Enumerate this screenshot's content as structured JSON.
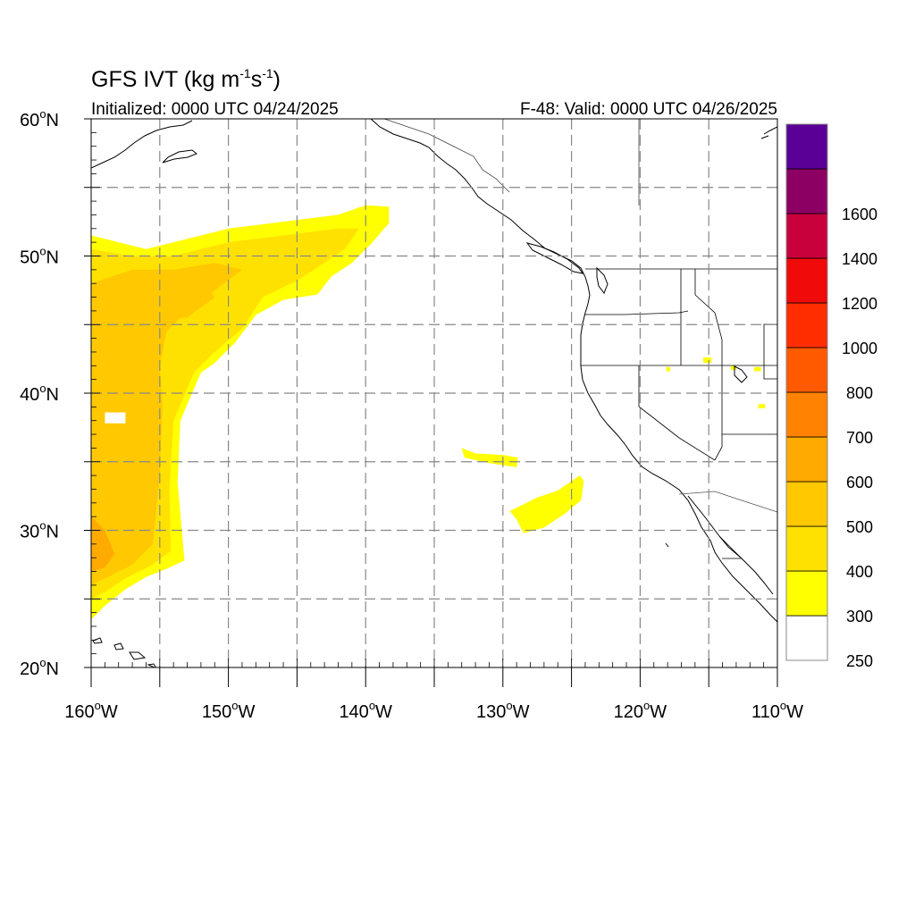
{
  "title": {
    "main": "GFS IVT (kg m",
    "unit_exp1": "-1",
    "unit_mid": "s",
    "unit_exp2": "-1",
    "unit_close": ")"
  },
  "subtitle": {
    "left": "Initialized: 0000 UTC 04/24/2025",
    "right": "F-48: Valid: 0000 UTC 04/26/2025"
  },
  "map": {
    "lon_range": [
      -160,
      -110
    ],
    "lat_range": [
      20,
      60
    ],
    "grid": true,
    "lon_ticks": [
      {
        "value": -160,
        "label": "160",
        "suffix": "W"
      },
      {
        "value": -150,
        "label": "150",
        "suffix": "W"
      },
      {
        "value": -140,
        "label": "140",
        "suffix": "W"
      },
      {
        "value": -130,
        "label": "130",
        "suffix": "W"
      },
      {
        "value": -120,
        "label": "120",
        "suffix": "W"
      },
      {
        "value": -110,
        "label": "110",
        "suffix": "W"
      }
    ],
    "lat_ticks": [
      {
        "value": 20,
        "label": "20",
        "suffix": "N"
      },
      {
        "value": 30,
        "label": "30",
        "suffix": "N"
      },
      {
        "value": 40,
        "label": "40",
        "suffix": "N"
      },
      {
        "value": 50,
        "label": "50",
        "suffix": "N"
      },
      {
        "value": 60,
        "label": "60",
        "suffix": "N"
      }
    ]
  },
  "colorbar": {
    "levels": [
      {
        "label": "250",
        "color": "#ffffff"
      },
      {
        "label": "300",
        "color": "#ffff00"
      },
      {
        "label": "400",
        "color": "#ffe100"
      },
      {
        "label": "500",
        "color": "#ffc800"
      },
      {
        "label": "600",
        "color": "#ffaa00"
      },
      {
        "label": "700",
        "color": "#ff8200"
      },
      {
        "label": "800",
        "color": "#ff5a00"
      },
      {
        "label": "1000",
        "color": "#ff2d00"
      },
      {
        "label": "1200",
        "color": "#f00a0a"
      },
      {
        "label": "1400",
        "color": "#c8003c"
      },
      {
        "label": "1600",
        "color": "#8c0064"
      },
      {
        "label": "",
        "color": "#5a0096"
      }
    ]
  },
  "ivt_regions": [
    {
      "name": "main-plume-300",
      "color": "#ffff00",
      "polygon": [
        [
          -160,
          23.5
        ],
        [
          -160,
          51.5
        ],
        [
          -158,
          51
        ],
        [
          -156,
          50.5
        ],
        [
          -154,
          51
        ],
        [
          -150,
          52
        ],
        [
          -146,
          52.5
        ],
        [
          -142,
          53
        ],
        [
          -140,
          53.7
        ],
        [
          -138.3,
          53.6
        ],
        [
          -138.3,
          52.4
        ],
        [
          -139.5,
          51
        ],
        [
          -141,
          49.5
        ],
        [
          -142.5,
          48.5
        ],
        [
          -143.5,
          47.2
        ],
        [
          -146,
          46.8
        ],
        [
          -148,
          45.7
        ],
        [
          -149.5,
          43.7
        ],
        [
          -151,
          42.2
        ],
        [
          -152,
          41.5
        ],
        [
          -153.5,
          38
        ],
        [
          -153.7,
          33.5
        ],
        [
          -153.2,
          27.8
        ],
        [
          -154.5,
          27.2
        ],
        [
          -156,
          26.6
        ],
        [
          -157.5,
          25.7
        ],
        [
          -159,
          24.5
        ]
      ]
    },
    {
      "name": "main-plume-400",
      "color": "#ffe100",
      "polygon": [
        [
          -160,
          25
        ],
        [
          -160,
          50.5
        ],
        [
          -157,
          50
        ],
        [
          -154,
          50
        ],
        [
          -150,
          51
        ],
        [
          -146,
          51.5
        ],
        [
          -142,
          52
        ],
        [
          -140.5,
          52
        ],
        [
          -141.5,
          50.5
        ],
        [
          -143,
          49.5
        ],
        [
          -145,
          48.2
        ],
        [
          -147.5,
          47
        ],
        [
          -149,
          44.7
        ],
        [
          -151,
          43
        ],
        [
          -152.5,
          41.5
        ],
        [
          -154,
          38
        ],
        [
          -154.3,
          33
        ],
        [
          -154.2,
          28.5
        ],
        [
          -155.5,
          27.5
        ],
        [
          -157.5,
          26.5
        ],
        [
          -159,
          25.5
        ]
      ]
    },
    {
      "name": "main-plume-500",
      "color": "#ffc800",
      "polygon": [
        [
          -160,
          26
        ],
        [
          -160,
          48
        ],
        [
          -157,
          49
        ],
        [
          -154,
          49
        ],
        [
          -151,
          49.5
        ],
        [
          -149,
          49
        ],
        [
          -151,
          47.5
        ],
        [
          -153,
          46
        ],
        [
          -154.5,
          44.5
        ],
        [
          -155,
          42
        ],
        [
          -154.8,
          39
        ],
        [
          -155,
          34
        ],
        [
          -155.5,
          29
        ],
        [
          -157,
          27.5
        ],
        [
          -159,
          26.5
        ]
      ]
    },
    {
      "name": "main-plume-600",
      "color": "#ffaa00",
      "polygon": [
        [
          -160,
          27
        ],
        [
          -160,
          31
        ],
        [
          -159,
          30
        ],
        [
          -158.3,
          28.3
        ],
        [
          -159,
          27.3
        ]
      ]
    },
    {
      "name": "north-core-500",
      "color": "#ffc800",
      "polygon": [
        [
          -157,
          46
        ],
        [
          -155,
          48.5
        ],
        [
          -152,
          48.5
        ],
        [
          -151,
          47
        ],
        [
          -153,
          45.5
        ],
        [
          -155.5,
          45.5
        ]
      ]
    },
    {
      "name": "hole",
      "color": "#ffffff",
      "polygon": [
        [
          -159,
          38.6
        ],
        [
          -157.5,
          38.6
        ],
        [
          -157.5,
          37.8
        ],
        [
          -159,
          37.8
        ]
      ]
    },
    {
      "name": "mid-streak",
      "color": "#ffff00",
      "polygon": [
        [
          -133,
          36
        ],
        [
          -132,
          35.6
        ],
        [
          -130,
          35.5
        ],
        [
          -128.9,
          35.3
        ],
        [
          -129,
          34.6
        ],
        [
          -131,
          34.9
        ],
        [
          -132.8,
          35.3
        ]
      ]
    },
    {
      "name": "south-blob",
      "color": "#ffff00",
      "polygon": [
        [
          -129.5,
          31.4
        ],
        [
          -127.5,
          32.4
        ],
        [
          -126,
          32.9
        ],
        [
          -124.4,
          34
        ],
        [
          -124.1,
          33.6
        ],
        [
          -124.3,
          32.2
        ],
        [
          -125.5,
          31.2
        ],
        [
          -127,
          30.2
        ],
        [
          -128.5,
          29.8
        ],
        [
          -129,
          30.8
        ]
      ]
    },
    {
      "name": "inland-spot-1",
      "color": "#ffff00",
      "polygon": [
        [
          -118.1,
          41.9
        ],
        [
          -117.8,
          41.9
        ],
        [
          -117.8,
          41.6
        ],
        [
          -118.1,
          41.6
        ]
      ]
    },
    {
      "name": "inland-spot-2",
      "color": "#ffff00",
      "polygon": [
        [
          -115.4,
          42.6
        ],
        [
          -114.8,
          42.6
        ],
        [
          -114.8,
          42.2
        ],
        [
          -115.4,
          42.2
        ]
      ]
    },
    {
      "name": "inland-spot-3",
      "color": "#ffff00",
      "polygon": [
        [
          -113.4,
          42
        ],
        [
          -113,
          42
        ],
        [
          -113,
          41.7
        ],
        [
          -113.4,
          41.7
        ]
      ]
    },
    {
      "name": "inland-spot-4",
      "color": "#ffff00",
      "polygon": [
        [
          -111.7,
          41.9
        ],
        [
          -111.2,
          41.9
        ],
        [
          -111.2,
          41.6
        ],
        [
          -111.7,
          41.6
        ]
      ]
    },
    {
      "name": "inland-spot-5",
      "color": "#ffff00",
      "polygon": [
        [
          -111.4,
          39.2
        ],
        [
          -110.9,
          39.2
        ],
        [
          -110.9,
          38.9
        ],
        [
          -111.4,
          38.9
        ]
      ]
    }
  ]
}
